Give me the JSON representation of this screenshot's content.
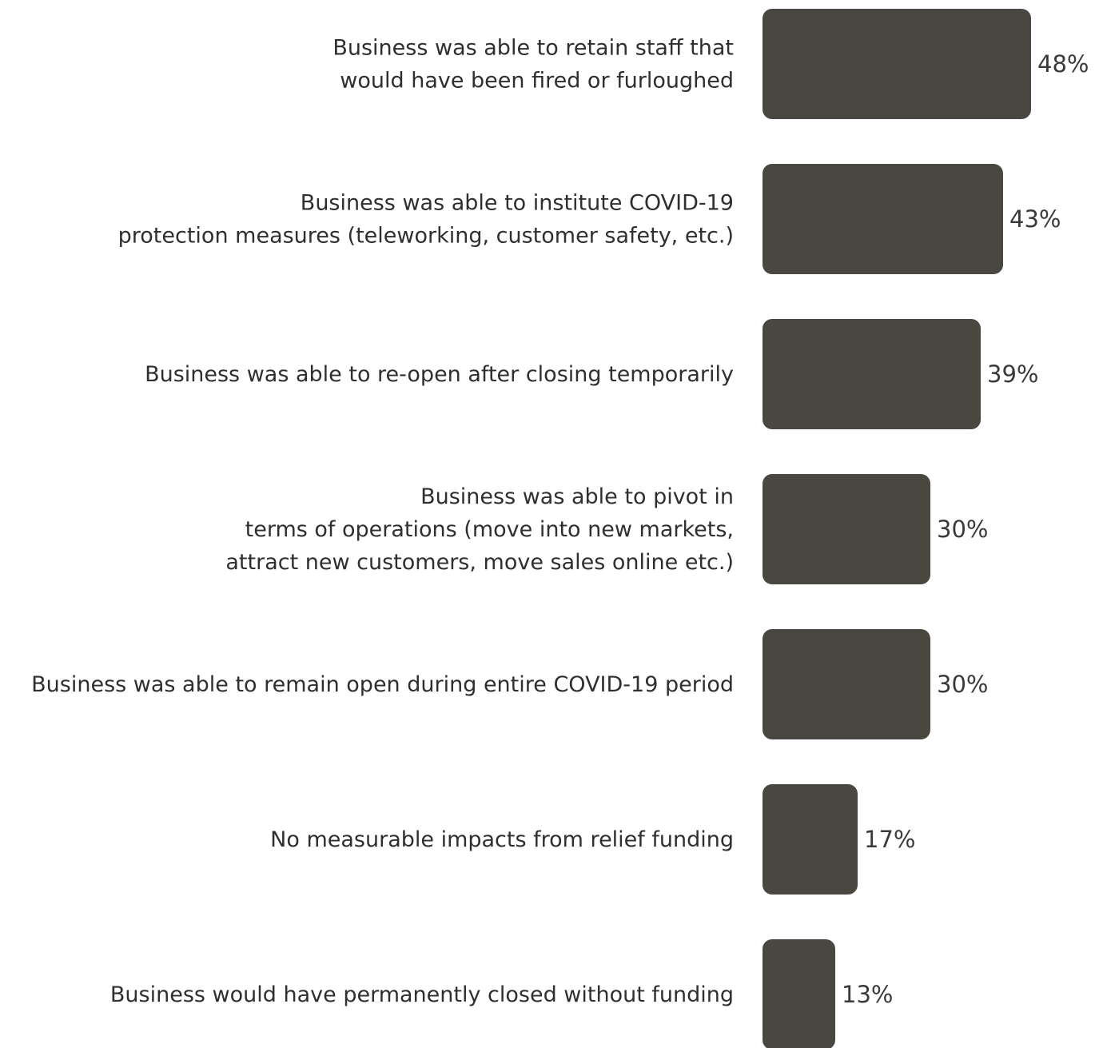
{
  "chart_data": {
    "type": "bar",
    "orientation": "horizontal",
    "categories": [
      [
        "Business was able to retain staff that",
        "would have been fired or furloughed"
      ],
      [
        "Business was able to institute COVID-19",
        "protection measures (teleworking, customer safety, etc.)"
      ],
      [
        "Business was able to re-open after closing temporarily"
      ],
      [
        "Business was able to pivot in",
        "terms of operations (move into new markets,",
        "attract new customers, move sales online etc.)"
      ],
      [
        "Business was able to remain open during entire COVID-19 period"
      ],
      [
        "No measurable impacts from relief funding"
      ],
      [
        "Business would have permanently closed without funding"
      ]
    ],
    "values": [
      48,
      43,
      39,
      30,
      30,
      17,
      13
    ],
    "value_labels": [
      "48%",
      "43%",
      "39%",
      "30%",
      "30%",
      "17%",
      "13%"
    ],
    "unit": "%",
    "bar_color": "#4a4740",
    "grid": false,
    "legend": "none"
  }
}
